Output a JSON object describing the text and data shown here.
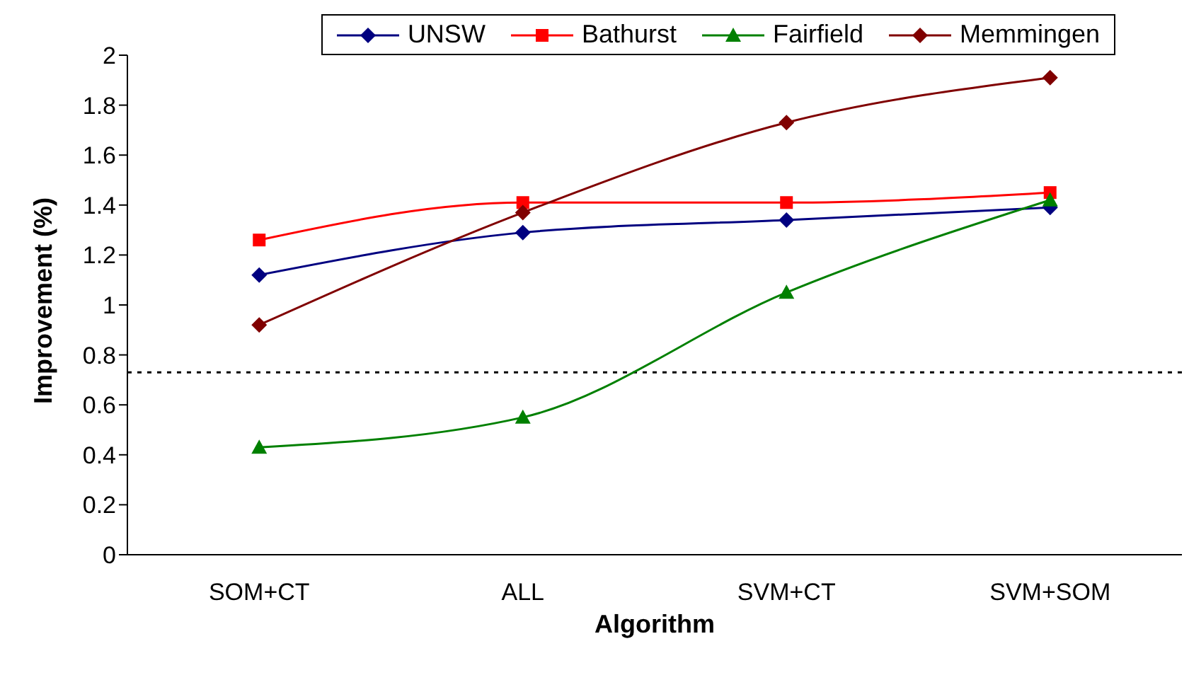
{
  "chart_data": {
    "type": "line",
    "xlabel": "Algorithm",
    "ylabel": "Improvement (%)",
    "categories": [
      "SOM+CT",
      "ALL",
      "SVM+CT",
      "SVM+SOM"
    ],
    "series": [
      {
        "name": "UNSW",
        "color": "#000080",
        "marker": "diamond",
        "values": [
          1.12,
          1.29,
          1.34,
          1.39
        ]
      },
      {
        "name": "Bathurst",
        "color": "#ff0000",
        "marker": "square",
        "values": [
          1.26,
          1.41,
          1.41,
          1.45
        ]
      },
      {
        "name": "Fairfield",
        "color": "#008000",
        "marker": "triangle",
        "values": [
          0.43,
          0.55,
          1.05,
          1.42
        ]
      },
      {
        "name": "Memmingen",
        "color": "#800000",
        "marker": "diamond",
        "values": [
          0.92,
          1.37,
          1.73,
          1.91
        ]
      }
    ],
    "ylim": [
      0,
      2
    ],
    "yticks": [
      0,
      0.2,
      0.4,
      0.6,
      0.8,
      1,
      1.2,
      1.4,
      1.6,
      1.8,
      2
    ],
    "grid": false,
    "legend": "top",
    "ref_lines": [
      {
        "axis": "y",
        "value": 0.73,
        "color": "#000000",
        "line_style": "dotted"
      }
    ]
  }
}
